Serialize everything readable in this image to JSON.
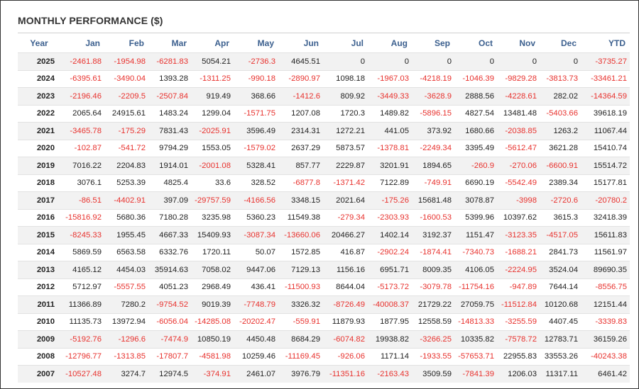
{
  "title": "MONTHLY PERFORMANCE ($)",
  "colors": {
    "header_text": "#3b5f8e",
    "negative": "#e8322e",
    "positive": "#222222",
    "stripe": "#f2f2f2"
  },
  "columns": [
    "Year",
    "Jan",
    "Feb",
    "Mar",
    "Apr",
    "May",
    "Jun",
    "Jul",
    "Aug",
    "Sep",
    "Oct",
    "Nov",
    "Dec",
    "YTD"
  ],
  "rows": [
    [
      "2025",
      "-2461.88",
      "-1954.98",
      "-6281.83",
      "5054.21",
      "-2736.3",
      "4645.51",
      "0",
      "0",
      "0",
      "0",
      "0",
      "0",
      "-3735.27"
    ],
    [
      "2024",
      "-6395.61",
      "-3490.04",
      "1393.28",
      "-1311.25",
      "-990.18",
      "-2890.97",
      "1098.18",
      "-1967.03",
      "-4218.19",
      "-1046.39",
      "-9829.28",
      "-3813.73",
      "-33461.21"
    ],
    [
      "2023",
      "-2196.46",
      "-2209.5",
      "-2507.84",
      "919.49",
      "368.66",
      "-1412.6",
      "809.92",
      "-3449.33",
      "-3628.9",
      "2888.56",
      "-4228.61",
      "282.02",
      "-14364.59"
    ],
    [
      "2022",
      "2065.64",
      "24915.61",
      "1483.24",
      "1299.04",
      "-1571.75",
      "1207.08",
      "1720.3",
      "1489.82",
      "-5896.15",
      "4827.54",
      "13481.48",
      "-5403.66",
      "39618.19"
    ],
    [
      "2021",
      "-3465.78",
      "-175.29",
      "7831.43",
      "-2025.91",
      "3596.49",
      "2314.31",
      "1272.21",
      "441.05",
      "373.92",
      "1680.66",
      "-2038.85",
      "1263.2",
      "11067.44"
    ],
    [
      "2020",
      "-102.87",
      "-541.72",
      "9794.29",
      "1553.05",
      "-1579.02",
      "2637.29",
      "5873.57",
      "-1378.81",
      "-2249.34",
      "3395.49",
      "-5612.47",
      "3621.28",
      "15410.74"
    ],
    [
      "2019",
      "7016.22",
      "2204.83",
      "1914.01",
      "-2001.08",
      "5328.41",
      "857.77",
      "2229.87",
      "3201.91",
      "1894.65",
      "-260.9",
      "-270.06",
      "-6600.91",
      "15514.72"
    ],
    [
      "2018",
      "3076.1",
      "5253.39",
      "4825.4",
      "33.6",
      "328.52",
      "-6877.8",
      "-1371.42",
      "7122.89",
      "-749.91",
      "6690.19",
      "-5542.49",
      "2389.34",
      "15177.81"
    ],
    [
      "2017",
      "-86.51",
      "-4402.91",
      "397.09",
      "-29757.59",
      "-4166.56",
      "3348.15",
      "2021.64",
      "-175.26",
      "15681.48",
      "3078.87",
      "-3998",
      "-2720.6",
      "-20780.2"
    ],
    [
      "2016",
      "-15816.92",
      "5680.36",
      "7180.28",
      "3235.98",
      "5360.23",
      "11549.38",
      "-279.34",
      "-2303.93",
      "-1600.53",
      "5399.96",
      "10397.62",
      "3615.3",
      "32418.39"
    ],
    [
      "2015",
      "-8245.33",
      "1955.45",
      "4667.33",
      "15409.93",
      "-3087.34",
      "-13660.06",
      "20466.27",
      "1402.14",
      "3192.37",
      "1151.47",
      "-3123.35",
      "-4517.05",
      "15611.83"
    ],
    [
      "2014",
      "5869.59",
      "6563.58",
      "6332.76",
      "1720.11",
      "50.07",
      "1572.85",
      "416.87",
      "-2902.24",
      "-1874.41",
      "-7340.73",
      "-1688.21",
      "2841.73",
      "11561.97"
    ],
    [
      "2013",
      "4165.12",
      "4454.03",
      "35914.63",
      "7058.02",
      "9447.06",
      "7129.13",
      "1156.16",
      "6951.71",
      "8009.35",
      "4106.05",
      "-2224.95",
      "3524.04",
      "89690.35"
    ],
    [
      "2012",
      "5712.97",
      "-5557.55",
      "4051.23",
      "2968.49",
      "436.41",
      "-11500.93",
      "8644.04",
      "-5173.72",
      "-3079.78",
      "-11754.16",
      "-947.89",
      "7644.14",
      "-8556.75"
    ],
    [
      "2011",
      "11366.89",
      "7280.2",
      "-9754.52",
      "9019.39",
      "-7748.79",
      "3326.32",
      "-8726.49",
      "-40008.37",
      "21729.22",
      "27059.75",
      "-11512.84",
      "10120.68",
      "12151.44"
    ],
    [
      "2010",
      "11135.73",
      "13972.94",
      "-6056.04",
      "-14285.08",
      "-20202.47",
      "-559.91",
      "11879.93",
      "1877.95",
      "12558.59",
      "-14813.33",
      "-3255.59",
      "4407.45",
      "-3339.83"
    ],
    [
      "2009",
      "-5192.76",
      "-1296.6",
      "-7474.9",
      "10850.19",
      "4450.48",
      "8684.29",
      "-6074.82",
      "19938.82",
      "-3266.25",
      "10335.82",
      "-7578.72",
      "12783.71",
      "36159.26"
    ],
    [
      "2008",
      "-12796.77",
      "-1313.85",
      "-17807.7",
      "-4581.98",
      "10259.46",
      "-11169.45",
      "-926.06",
      "1171.14",
      "-1933.55",
      "-57653.71",
      "22955.83",
      "33553.26",
      "-40243.38"
    ],
    [
      "2007",
      "-10527.48",
      "3274.7",
      "12974.5",
      "-374.91",
      "2461.07",
      "3976.79",
      "-11351.16",
      "-2163.43",
      "3509.59",
      "-7841.39",
      "1206.03",
      "11317.11",
      "6461.42"
    ]
  ]
}
